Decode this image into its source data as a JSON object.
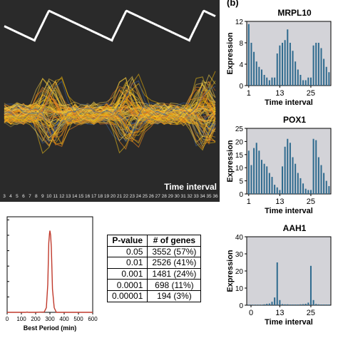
{
  "panel_b_label": "(b)",
  "heatmap": {
    "xlabel": "Time interval",
    "ticks": [
      "3",
      "4",
      "5",
      "6",
      "7",
      "8",
      "9",
      "10",
      "11",
      "12",
      "13",
      "14",
      "15",
      "16",
      "17",
      "18",
      "19",
      "20",
      "21",
      "22",
      "23",
      "24",
      "25",
      "26",
      "27",
      "28",
      "29",
      "30",
      "31",
      "32",
      "33",
      "34",
      "35",
      "36"
    ]
  },
  "pvalue_table": {
    "headers": [
      "P-value",
      "# of genes"
    ],
    "rows": [
      {
        "p": "0.05",
        "genes": "3552 (57%)"
      },
      {
        "p": "0.01",
        "genes": "2526 (41%)"
      },
      {
        "p": "0.001",
        "genes": "1481 (24%)"
      },
      {
        "p": "0.0001",
        "genes": "698 (11%)"
      },
      {
        "p": "0.00001",
        "genes": "194 (3%)"
      }
    ]
  },
  "colors": {
    "bar_blue": "#2e6a8e",
    "panel_gray": "#d3d3d8",
    "histogram_line": "#c0392b",
    "heatmap_bg": "#2a2a2a"
  },
  "chart_data": [
    {
      "type": "bar",
      "title": "MRPL10",
      "ylabel": "Expression",
      "xlabel": "Time interval",
      "ylim": [
        0,
        12
      ],
      "yticks": [
        "0",
        "4",
        "8",
        "12"
      ],
      "xticks": [
        {
          "label": "1",
          "at": 1
        },
        {
          "label": "13",
          "at": 13
        },
        {
          "label": "25",
          "at": 25
        }
      ],
      "values": [
        11.5,
        8,
        6.3,
        4.5,
        3.5,
        3,
        2,
        1.5,
        1,
        1.5,
        1.5,
        6,
        7.5,
        8,
        8.5,
        10.5,
        8,
        6.5,
        4.5,
        3,
        2,
        1,
        1,
        1.5,
        1.5,
        7.5,
        8,
        8,
        7,
        5,
        3.5,
        2.5
      ]
    },
    {
      "type": "bar",
      "title": "POX1",
      "ylabel": "Expression",
      "xlabel": "Time interval",
      "ylim": [
        0,
        25
      ],
      "yticks": [
        "0",
        "5",
        "10",
        "15",
        "20",
        "25"
      ],
      "xticks": [
        {
          "label": "1",
          "at": 1
        },
        {
          "label": "13",
          "at": 13
        },
        {
          "label": "25",
          "at": 25
        }
      ],
      "values": [
        16.5,
        11,
        17.5,
        19.5,
        16.5,
        13,
        11.5,
        10.5,
        8,
        6.5,
        3.5,
        2.5,
        1.5,
        10.5,
        18,
        21,
        19.5,
        14,
        11.5,
        8,
        6,
        4,
        2,
        1.5,
        1.5,
        21,
        20.5,
        14,
        11,
        8,
        5,
        3
      ]
    },
    {
      "type": "bar",
      "title": "AAH1",
      "ylabel": "Expression",
      "xlabel": "Time interval",
      "ylim": [
        0,
        40
      ],
      "yticks": [
        "0",
        "10",
        "20",
        "30",
        "40"
      ],
      "xticks": [
        {
          "label": "0",
          "at": 0
        },
        {
          "label": "13",
          "at": 13
        },
        {
          "label": "25",
          "at": 25
        }
      ],
      "values": [
        0.3,
        0.3,
        0.3,
        0.3,
        0.3,
        0.3,
        0.5,
        0.8,
        1,
        2,
        4.5,
        25,
        3,
        0.6,
        0.5,
        0.5,
        0.4,
        0.4,
        0.4,
        0.4,
        0.5,
        0.6,
        0.8,
        1.5,
        23,
        3,
        0.7,
        0.5,
        0.4,
        0.4,
        0.4,
        0.4
      ]
    },
    {
      "type": "line",
      "xlabel": "Best Period (min)",
      "ylabel": "",
      "xlim": [
        0,
        600
      ],
      "xticks": [
        "0",
        "100",
        "200",
        "300",
        "400",
        "500",
        "600"
      ],
      "x": [
        0,
        100,
        130,
        140,
        150,
        200,
        260,
        275,
        285,
        292,
        297,
        300,
        305,
        310,
        318,
        330,
        345,
        400,
        500,
        600
      ],
      "y": [
        0,
        0,
        0,
        0.02,
        0,
        0,
        0.02,
        0.3,
        1.8,
        4.5,
        5.1,
        5.3,
        5,
        4.2,
        1.5,
        0.3,
        0,
        0,
        0,
        0
      ]
    }
  ]
}
